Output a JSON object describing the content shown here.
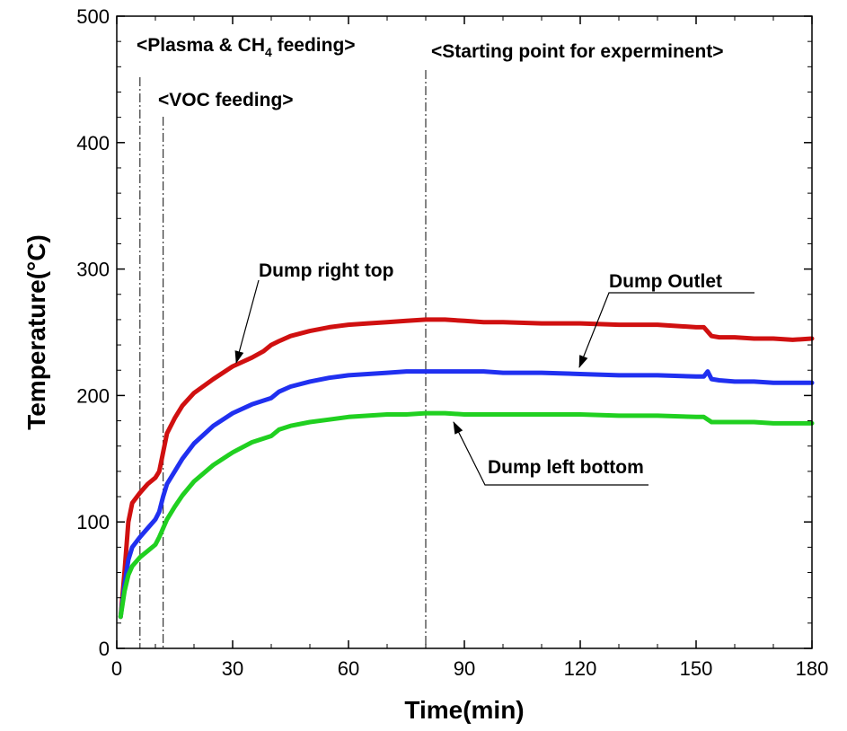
{
  "chart_data": {
    "type": "line",
    "xlabel": "Time(min)",
    "ylabel": "Temperature(°C)",
    "xlim": [
      0,
      180
    ],
    "ylim": [
      0,
      500
    ],
    "xticks": [
      0,
      30,
      60,
      90,
      120,
      150,
      180
    ],
    "yticks": [
      0,
      100,
      200,
      300,
      400,
      500
    ],
    "grid": false,
    "vlines": [
      {
        "x": 6,
        "label_main": "<Plasma & CH",
        "label_sub": "4",
        "label_end": " feeding>"
      },
      {
        "x": 12,
        "label": "<VOC feeding>"
      },
      {
        "x": 80,
        "label": "<Starting point for experminent>"
      }
    ],
    "series": [
      {
        "name": "Dump right top",
        "color": "#d01010",
        "x": [
          1,
          2,
          3,
          4,
          6,
          8,
          10,
          11,
          12,
          13,
          15,
          17,
          20,
          25,
          30,
          35,
          38,
          40,
          42,
          45,
          50,
          55,
          60,
          65,
          70,
          75,
          80,
          85,
          90,
          95,
          100,
          110,
          120,
          130,
          140,
          150,
          152,
          154,
          156,
          160,
          165,
          170,
          175,
          180
        ],
        "y": [
          25,
          60,
          100,
          115,
          123,
          130,
          135,
          140,
          155,
          170,
          182,
          192,
          202,
          213,
          223,
          230,
          235,
          240,
          243,
          247,
          251,
          254,
          256,
          257,
          258,
          259,
          260,
          260,
          259,
          258,
          258,
          257,
          257,
          256,
          256,
          254,
          254,
          247,
          246,
          246,
          245,
          245,
          244,
          245
        ]
      },
      {
        "name": "Dump Outlet",
        "color": "#2030f0",
        "x": [
          1,
          2,
          3,
          4,
          6,
          8,
          10,
          11,
          12,
          13,
          15,
          17,
          20,
          25,
          30,
          35,
          40,
          42,
          45,
          50,
          55,
          60,
          65,
          70,
          75,
          80,
          85,
          90,
          95,
          100,
          110,
          120,
          130,
          140,
          150,
          152,
          153,
          154,
          156,
          160,
          165,
          170,
          175,
          180
        ],
        "y": [
          25,
          50,
          70,
          80,
          88,
          95,
          102,
          108,
          120,
          130,
          140,
          150,
          162,
          176,
          186,
          193,
          198,
          203,
          207,
          211,
          214,
          216,
          217,
          218,
          219,
          219,
          219,
          219,
          219,
          218,
          218,
          217,
          216,
          216,
          215,
          215,
          219,
          213,
          212,
          211,
          211,
          210,
          210,
          210
        ]
      },
      {
        "name": "Dump left bottom",
        "color": "#20d020",
        "x": [
          1,
          2,
          3,
          4,
          6,
          8,
          10,
          11,
          12,
          13,
          15,
          17,
          20,
          25,
          30,
          35,
          40,
          42,
          45,
          50,
          55,
          60,
          65,
          70,
          75,
          80,
          85,
          90,
          95,
          100,
          110,
          120,
          130,
          140,
          150,
          152,
          154,
          156,
          160,
          165,
          170,
          175,
          180
        ],
        "y": [
          25,
          45,
          58,
          65,
          72,
          77,
          82,
          88,
          95,
          102,
          112,
          121,
          132,
          145,
          155,
          163,
          168,
          173,
          176,
          179,
          181,
          183,
          184,
          185,
          185,
          186,
          186,
          185,
          185,
          185,
          185,
          185,
          184,
          184,
          183,
          183,
          179,
          179,
          179,
          179,
          178,
          178,
          178
        ]
      }
    ],
    "annotations": [
      {
        "text": "Dump right top",
        "target": [
          31,
          225
        ]
      },
      {
        "text": "Dump Outlet",
        "target": [
          120,
          219
        ]
      },
      {
        "text": "Dump left bottom",
        "target": [
          87,
          187
        ]
      }
    ]
  }
}
